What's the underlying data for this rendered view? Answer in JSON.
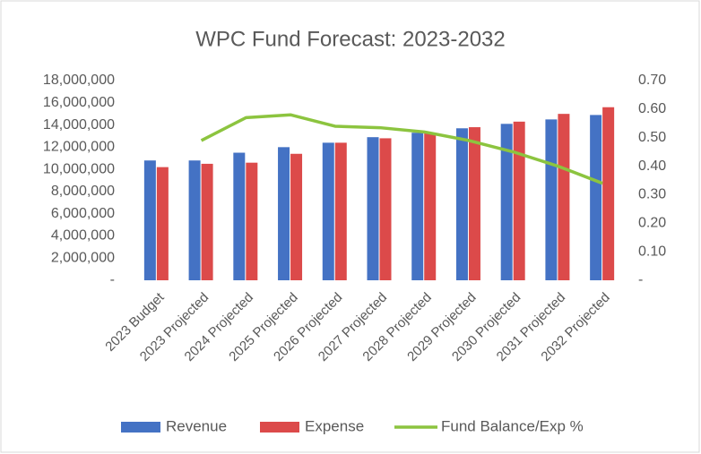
{
  "chart_data": {
    "type": "bar-line",
    "title": "WPC Fund Forecast: 2023-2032",
    "categories": [
      "2023 Budget",
      "2023 Projected",
      "2024 Projected",
      "2025 Projected",
      "2026 Projected",
      "2027 Projected",
      "2028 Projected",
      "2029 Projected",
      "2030 Projected",
      "2031 Projected",
      "2032 Projected"
    ],
    "series": [
      {
        "name": "Revenue",
        "type": "bar",
        "color": "#4472c4",
        "values": [
          10800000,
          10800000,
          11500000,
          12000000,
          12400000,
          12900000,
          13300000,
          13700000,
          14100000,
          14500000,
          14900000
        ]
      },
      {
        "name": "Expense",
        "type": "bar",
        "color": "#dc4a4a",
        "values": [
          10200000,
          10500000,
          10600000,
          11400000,
          12400000,
          12800000,
          13300000,
          13800000,
          14300000,
          15000000,
          15600000
        ]
      },
      {
        "name": "Fund Balance/Exp %",
        "type": "line",
        "axis": "y2",
        "color": "#8cc43f",
        "values": [
          null,
          0.49,
          0.57,
          0.58,
          0.54,
          0.535,
          0.52,
          0.49,
          0.45,
          0.4,
          0.34
        ]
      }
    ],
    "ylim": [
      0,
      18000000
    ],
    "yticks": [
      {
        "value": 0,
        "label": "-"
      },
      {
        "value": 2000000,
        "label": "2,000,000"
      },
      {
        "value": 4000000,
        "label": "4,000,000"
      },
      {
        "value": 6000000,
        "label": "6,000,000"
      },
      {
        "value": 8000000,
        "label": "8,000,000"
      },
      {
        "value": 10000000,
        "label": "10,000,000"
      },
      {
        "value": 12000000,
        "label": "12,000,000"
      },
      {
        "value": 14000000,
        "label": "14,000,000"
      },
      {
        "value": 16000000,
        "label": "16,000,000"
      },
      {
        "value": 18000000,
        "label": "18,000,000"
      }
    ],
    "y2lim": [
      0,
      0.7
    ],
    "y2ticks": [
      {
        "value": 0,
        "label": "-"
      },
      {
        "value": 0.1,
        "label": "0.10"
      },
      {
        "value": 0.2,
        "label": "0.20"
      },
      {
        "value": 0.3,
        "label": "0.30"
      },
      {
        "value": 0.4,
        "label": "0.40"
      },
      {
        "value": 0.5,
        "label": "0.50"
      },
      {
        "value": 0.6,
        "label": "0.60"
      },
      {
        "value": 0.7,
        "label": "0.70"
      }
    ],
    "grid": false,
    "legend": "bottom"
  }
}
